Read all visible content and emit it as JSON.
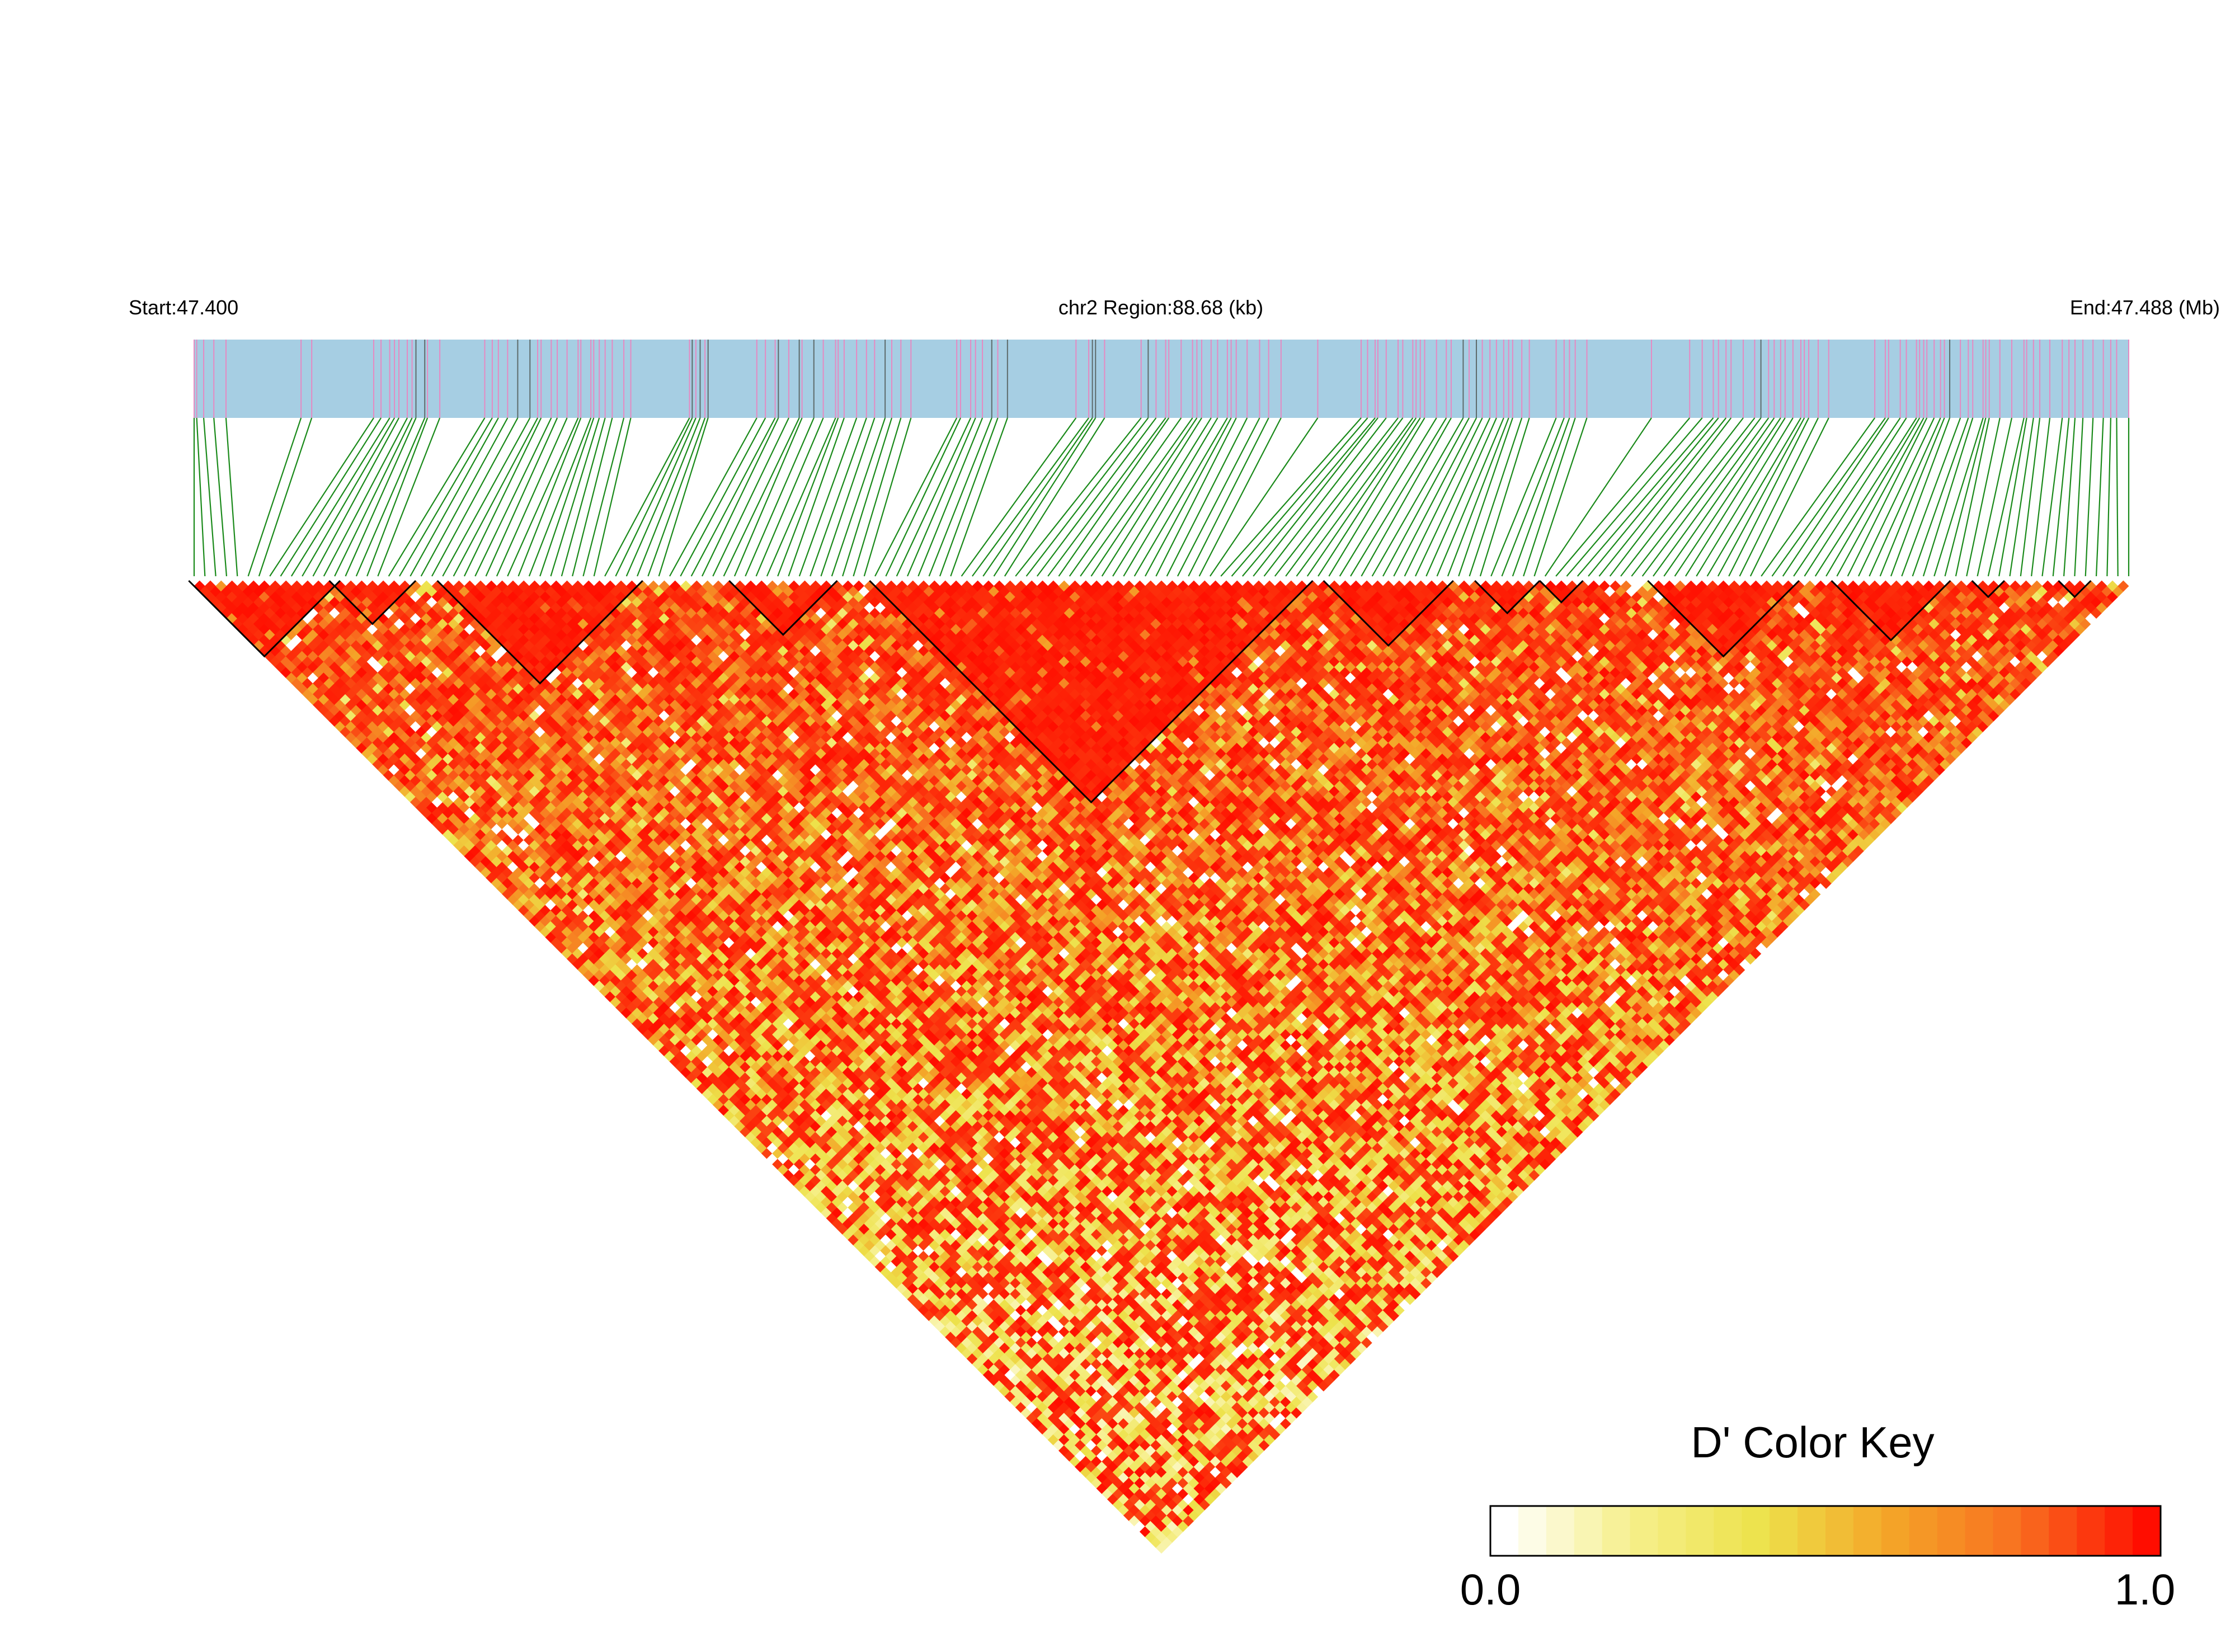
{
  "header": {
    "start_label": "Start:47.400",
    "region_label": "chr2 Region:88.68 (kb)",
    "end_label": "End:47.488 (Mb)"
  },
  "colors": {
    "track_fill": "#a6cee3",
    "snp_tick_pink": "#e58ac2",
    "snp_tick_dark": "#5e6b6b",
    "connector": "#1a8a1a",
    "block_outline": "#000000",
    "ld_high": "#ff0d00",
    "ld_mid": "#f0e44b",
    "ld_low": "#ffffff"
  },
  "chart_data": {
    "type": "heatmap",
    "description_type": "LD triangle (pairwise D')",
    "chromosome": "chr2",
    "region_start_mb": 47.4,
    "region_end_mb": 47.488,
    "region_size_kb": 88.68,
    "snp_count": 180,
    "haplotype_blocks_snp_index_ranges": [
      [
        0,
        13
      ],
      [
        13,
        20
      ],
      [
        23,
        41
      ],
      [
        50,
        59
      ],
      [
        63,
        103
      ],
      [
        105,
        116
      ],
      [
        119,
        124
      ],
      [
        125,
        128
      ],
      [
        135,
        148
      ],
      [
        152,
        162
      ],
      [
        165,
        167
      ],
      [
        173,
        175
      ]
    ],
    "color_key": {
      "title": "D' Color Key",
      "min_label": "0.0",
      "max_label": "1.0",
      "min": 0.0,
      "max": 1.0,
      "stops": [
        "#ffffff",
        "#f6ef8a",
        "#ede24b",
        "#f4a528",
        "#f87020",
        "#ff0d00"
      ]
    }
  }
}
